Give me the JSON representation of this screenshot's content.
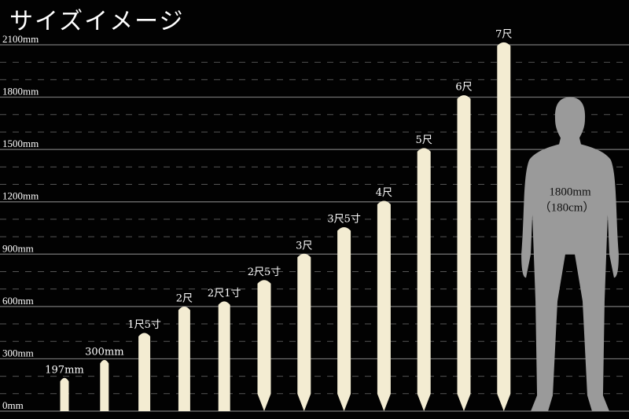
{
  "title": "サイズイメージ",
  "chart_data": {
    "type": "bar",
    "title": "サイズイメージ",
    "ylim": [
      0,
      2100
    ],
    "yticks": [
      0,
      300,
      600,
      900,
      1200,
      1500,
      1800,
      2100
    ],
    "ytick_labels": [
      "0mm",
      "300mm",
      "600mm",
      "900mm",
      "1200mm",
      "1500mm",
      "1800mm",
      "2100mm"
    ],
    "minor_gridlines_dashed": true,
    "categories": [
      "197mm",
      "300mm",
      "1尺5寸",
      "2尺",
      "2尺1寸",
      "2尺5寸",
      "3尺",
      "3尺5寸",
      "4尺",
      "5尺",
      "6尺",
      "7尺"
    ],
    "values": [
      197,
      300,
      455,
      606,
      636,
      758,
      909,
      1061,
      1212,
      1515,
      1818,
      2121
    ],
    "pointed_bottom": [
      false,
      false,
      false,
      false,
      false,
      true,
      true,
      true,
      true,
      true,
      true,
      true
    ],
    "bar_color": "#f3ecd2",
    "reference": {
      "label": "1800mm",
      "sublabel": "（180cm）",
      "value": 1800,
      "color": "#9a9a9a"
    }
  }
}
